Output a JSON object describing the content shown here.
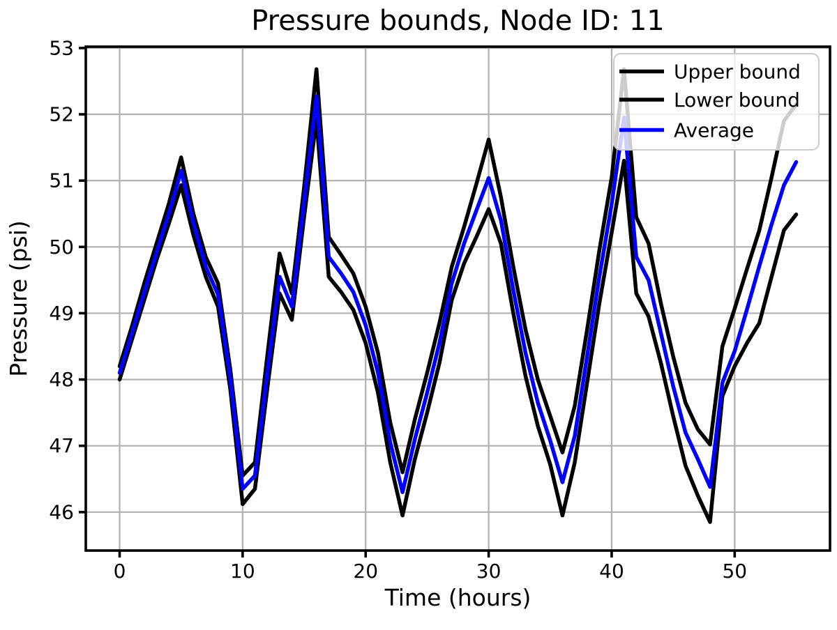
{
  "figure": {
    "background": "#ffffff",
    "text_color": "#000000",
    "grid_color": "#b0b0b0",
    "spine_color": "#000000",
    "legend_border_color": "#cccccc",
    "legend_fill_opacity": 0.8
  },
  "chart_data": {
    "type": "line",
    "title": "Pressure bounds, Node ID: 11",
    "xlabel": "Time (hours)",
    "ylabel": "Pressure (psi)",
    "grid": true,
    "legend_position": "upper right",
    "xlim": [
      -2.75,
      57.75
    ],
    "ylim": [
      45.42,
      53.02
    ],
    "xticks": [
      0,
      10,
      20,
      30,
      40,
      50
    ],
    "yticks": [
      46,
      47,
      48,
      49,
      50,
      51,
      52,
      53
    ],
    "x": [
      0,
      1,
      2,
      3,
      4,
      5,
      6,
      7,
      8,
      9,
      10,
      11,
      12,
      13,
      14,
      15,
      16,
      17,
      18,
      19,
      20,
      21,
      22,
      23,
      24,
      25,
      26,
      27,
      28,
      29,
      30,
      31,
      32,
      33,
      34,
      35,
      36,
      37,
      38,
      39,
      40,
      41,
      42,
      43,
      44,
      45,
      46,
      47,
      48,
      49,
      50,
      51,
      52,
      53,
      54,
      55
    ],
    "series": [
      {
        "name": "Upper bound",
        "color": "#000000",
        "values": [
          48.2,
          48.8,
          49.45,
          50.05,
          50.65,
          51.35,
          50.5,
          49.85,
          49.45,
          48.15,
          46.55,
          46.75,
          48.35,
          49.9,
          49.3,
          50.9,
          52.68,
          50.15,
          49.88,
          49.6,
          49.1,
          48.4,
          47.35,
          46.6,
          47.4,
          48.1,
          48.85,
          49.7,
          50.3,
          50.95,
          51.62,
          50.75,
          49.7,
          48.75,
          48.0,
          47.45,
          46.9,
          47.6,
          48.75,
          49.95,
          51.05,
          52.68,
          50.45,
          50.05,
          49.15,
          48.35,
          47.65,
          47.25,
          47.02,
          48.5,
          49.07,
          49.67,
          50.25,
          51.05,
          51.9,
          52.15
        ]
      },
      {
        "name": "Lower bound",
        "color": "#000000",
        "values": [
          48.0,
          48.6,
          49.2,
          49.8,
          50.35,
          50.93,
          50.18,
          49.55,
          49.1,
          47.85,
          46.12,
          46.35,
          47.85,
          49.3,
          48.9,
          50.45,
          51.93,
          49.55,
          49.32,
          49.05,
          48.55,
          47.8,
          46.75,
          45.95,
          46.8,
          47.5,
          48.25,
          49.2,
          49.75,
          50.15,
          50.57,
          50.05,
          49.0,
          48.05,
          47.3,
          46.72,
          45.95,
          46.75,
          47.95,
          49.15,
          50.22,
          51.3,
          49.3,
          48.95,
          48.25,
          47.45,
          46.7,
          46.25,
          45.85,
          47.75,
          48.2,
          48.55,
          48.85,
          49.55,
          50.25,
          50.49
        ]
      },
      {
        "name": "Average",
        "color": "#0000ff",
        "values": [
          48.1,
          48.7,
          49.32,
          49.92,
          50.5,
          51.15,
          50.35,
          49.7,
          49.28,
          48.0,
          46.35,
          46.55,
          48.1,
          49.55,
          49.1,
          50.7,
          52.27,
          49.85,
          49.6,
          49.32,
          48.82,
          48.1,
          47.05,
          46.3,
          47.1,
          47.8,
          48.55,
          49.45,
          50.05,
          50.55,
          51.04,
          50.4,
          49.35,
          48.4,
          47.65,
          47.08,
          46.45,
          47.15,
          48.35,
          49.55,
          50.65,
          51.95,
          49.85,
          49.5,
          48.7,
          47.9,
          47.2,
          46.8,
          46.38,
          47.95,
          48.43,
          49.06,
          49.71,
          50.34,
          50.93,
          51.28
        ]
      }
    ]
  }
}
